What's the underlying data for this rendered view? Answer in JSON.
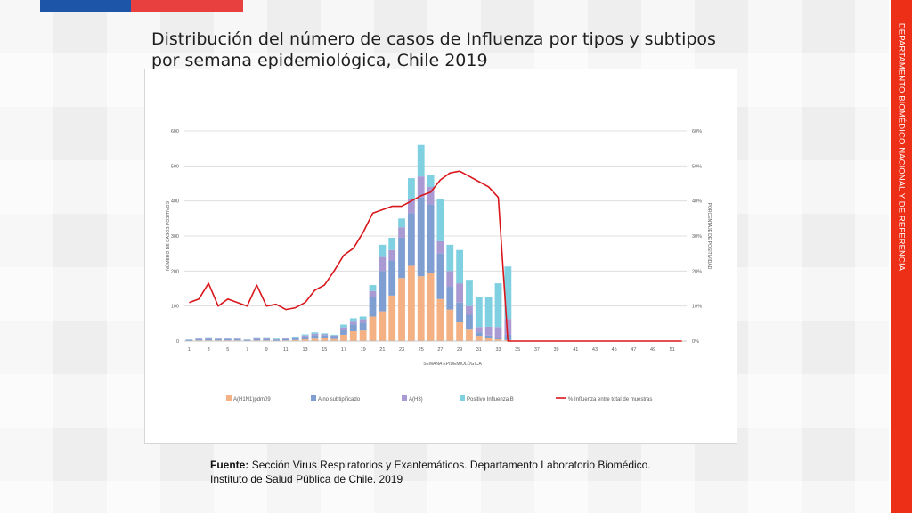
{
  "slide": {
    "title_line1": "Distribución del número de casos de Influenza por tipos y subtipos",
    "title_line2": "por semana epidemiológica, Chile 2019",
    "side_label": "DEPARTAMENTO BIOMÉDICO NACIONAL Y DE REFERENCIA",
    "source_label": "Fuente:",
    "source_line1": "Sección Virus Respiratorios y Exantemáticos. Departamento Laboratorio Biomédico.",
    "source_line2": "Instituto de Salud Pública de Chile. 2019",
    "colors": {
      "flag_blue": "#1d56a8",
      "flag_red": "#e8403f",
      "side_band": "#ee2f17"
    }
  },
  "chart_data": {
    "type": "bar",
    "stacked": true,
    "title": "",
    "xlabel": "SEMANA EPIDEMIOLÓGICA",
    "ylabel": "NÚMERO DE CASOS POSITIVOS",
    "y2label": "PORCENTAJE DE POSITIVIDAD",
    "ylim": [
      0,
      600
    ],
    "y2lim": [
      0,
      60
    ],
    "yticks": [
      0,
      100,
      200,
      300,
      400,
      500,
      600
    ],
    "y2ticks": [
      "0%",
      "10%",
      "20%",
      "30%",
      "40%",
      "50%",
      "60%"
    ],
    "xticks": [
      "1",
      "3",
      "5",
      "7",
      "9",
      "11",
      "13",
      "15",
      "17",
      "19",
      "21",
      "23",
      "25",
      "27",
      "29",
      "31",
      "33",
      "35",
      "37",
      "39",
      "41",
      "43",
      "45",
      "47",
      "49",
      "51"
    ],
    "grid": true,
    "legend_position": "bottom",
    "weeks": [
      1,
      2,
      3,
      4,
      5,
      6,
      7,
      8,
      9,
      10,
      11,
      12,
      13,
      14,
      15,
      16,
      17,
      18,
      19,
      20,
      21,
      22,
      23,
      24,
      25,
      26,
      27,
      28,
      29,
      30,
      31,
      32,
      33,
      34,
      35,
      36,
      37,
      38,
      39,
      40,
      41,
      42,
      43,
      44,
      45,
      46,
      47,
      48,
      49,
      50,
      51,
      52
    ],
    "series": [
      {
        "name": "A(H1N1)pdm09",
        "color": "#f4b183",
        "kind": "bar",
        "values": [
          1,
          2,
          2,
          2,
          2,
          2,
          1,
          2,
          2,
          1,
          2,
          3,
          5,
          7,
          8,
          6,
          18,
          28,
          30,
          70,
          85,
          130,
          180,
          215,
          185,
          195,
          120,
          90,
          55,
          35,
          15,
          8,
          5,
          3,
          0,
          0,
          0,
          0,
          0,
          0,
          0,
          0,
          0,
          0,
          0,
          0,
          0,
          0,
          0,
          0,
          0,
          0
        ]
      },
      {
        "name": "A no subtipificado",
        "color": "#7f9fd3",
        "kind": "bar",
        "values": [
          2,
          3,
          4,
          3,
          3,
          3,
          2,
          4,
          4,
          3,
          4,
          6,
          8,
          10,
          8,
          8,
          15,
          20,
          22,
          55,
          115,
          100,
          115,
          150,
          225,
          195,
          130,
          65,
          55,
          40,
          10,
          8,
          5,
          15,
          0,
          0,
          0,
          0,
          0,
          0,
          0,
          0,
          0,
          0,
          0,
          0,
          0,
          0,
          0,
          0,
          0,
          0
        ]
      },
      {
        "name": "A(H3)",
        "color": "#a99ad3",
        "kind": "bar",
        "values": [
          1,
          2,
          2,
          2,
          2,
          2,
          1,
          2,
          2,
          1,
          2,
          2,
          3,
          4,
          3,
          2,
          6,
          10,
          10,
          18,
          40,
          30,
          30,
          40,
          60,
          50,
          35,
          45,
          55,
          25,
          15,
          25,
          30,
          45,
          0,
          0,
          0,
          0,
          0,
          0,
          0,
          0,
          0,
          0,
          0,
          0,
          0,
          0,
          0,
          0,
          0,
          0
        ]
      },
      {
        "name": "Positivo Influenza  B",
        "color": "#7fd0e1",
        "kind": "bar",
        "values": [
          1,
          3,
          3,
          2,
          2,
          2,
          1,
          3,
          3,
          2,
          2,
          2,
          3,
          4,
          3,
          2,
          8,
          7,
          8,
          17,
          35,
          35,
          25,
          60,
          90,
          35,
          120,
          75,
          95,
          75,
          85,
          85,
          125,
          150,
          0,
          0,
          0,
          0,
          0,
          0,
          0,
          0,
          0,
          0,
          0,
          0,
          0,
          0,
          0,
          0,
          0,
          0
        ]
      },
      {
        "name": "% Influenza entre total de muestras",
        "color": "#d8161b",
        "kind": "line",
        "axis": "right",
        "values": [
          11,
          12,
          16.5,
          10,
          12,
          11,
          10,
          16,
          10,
          10.5,
          9,
          9.5,
          11,
          14.5,
          16,
          20,
          24.5,
          26.5,
          31,
          36.5,
          37.5,
          38.5,
          38.5,
          40,
          41.5,
          42.5,
          46,
          48,
          48.5,
          47,
          45.5,
          44,
          41,
          0,
          0,
          0,
          0,
          0,
          0,
          0,
          0,
          0,
          0,
          0,
          0,
          0,
          0,
          0,
          0,
          0,
          0,
          0
        ]
      }
    ]
  }
}
